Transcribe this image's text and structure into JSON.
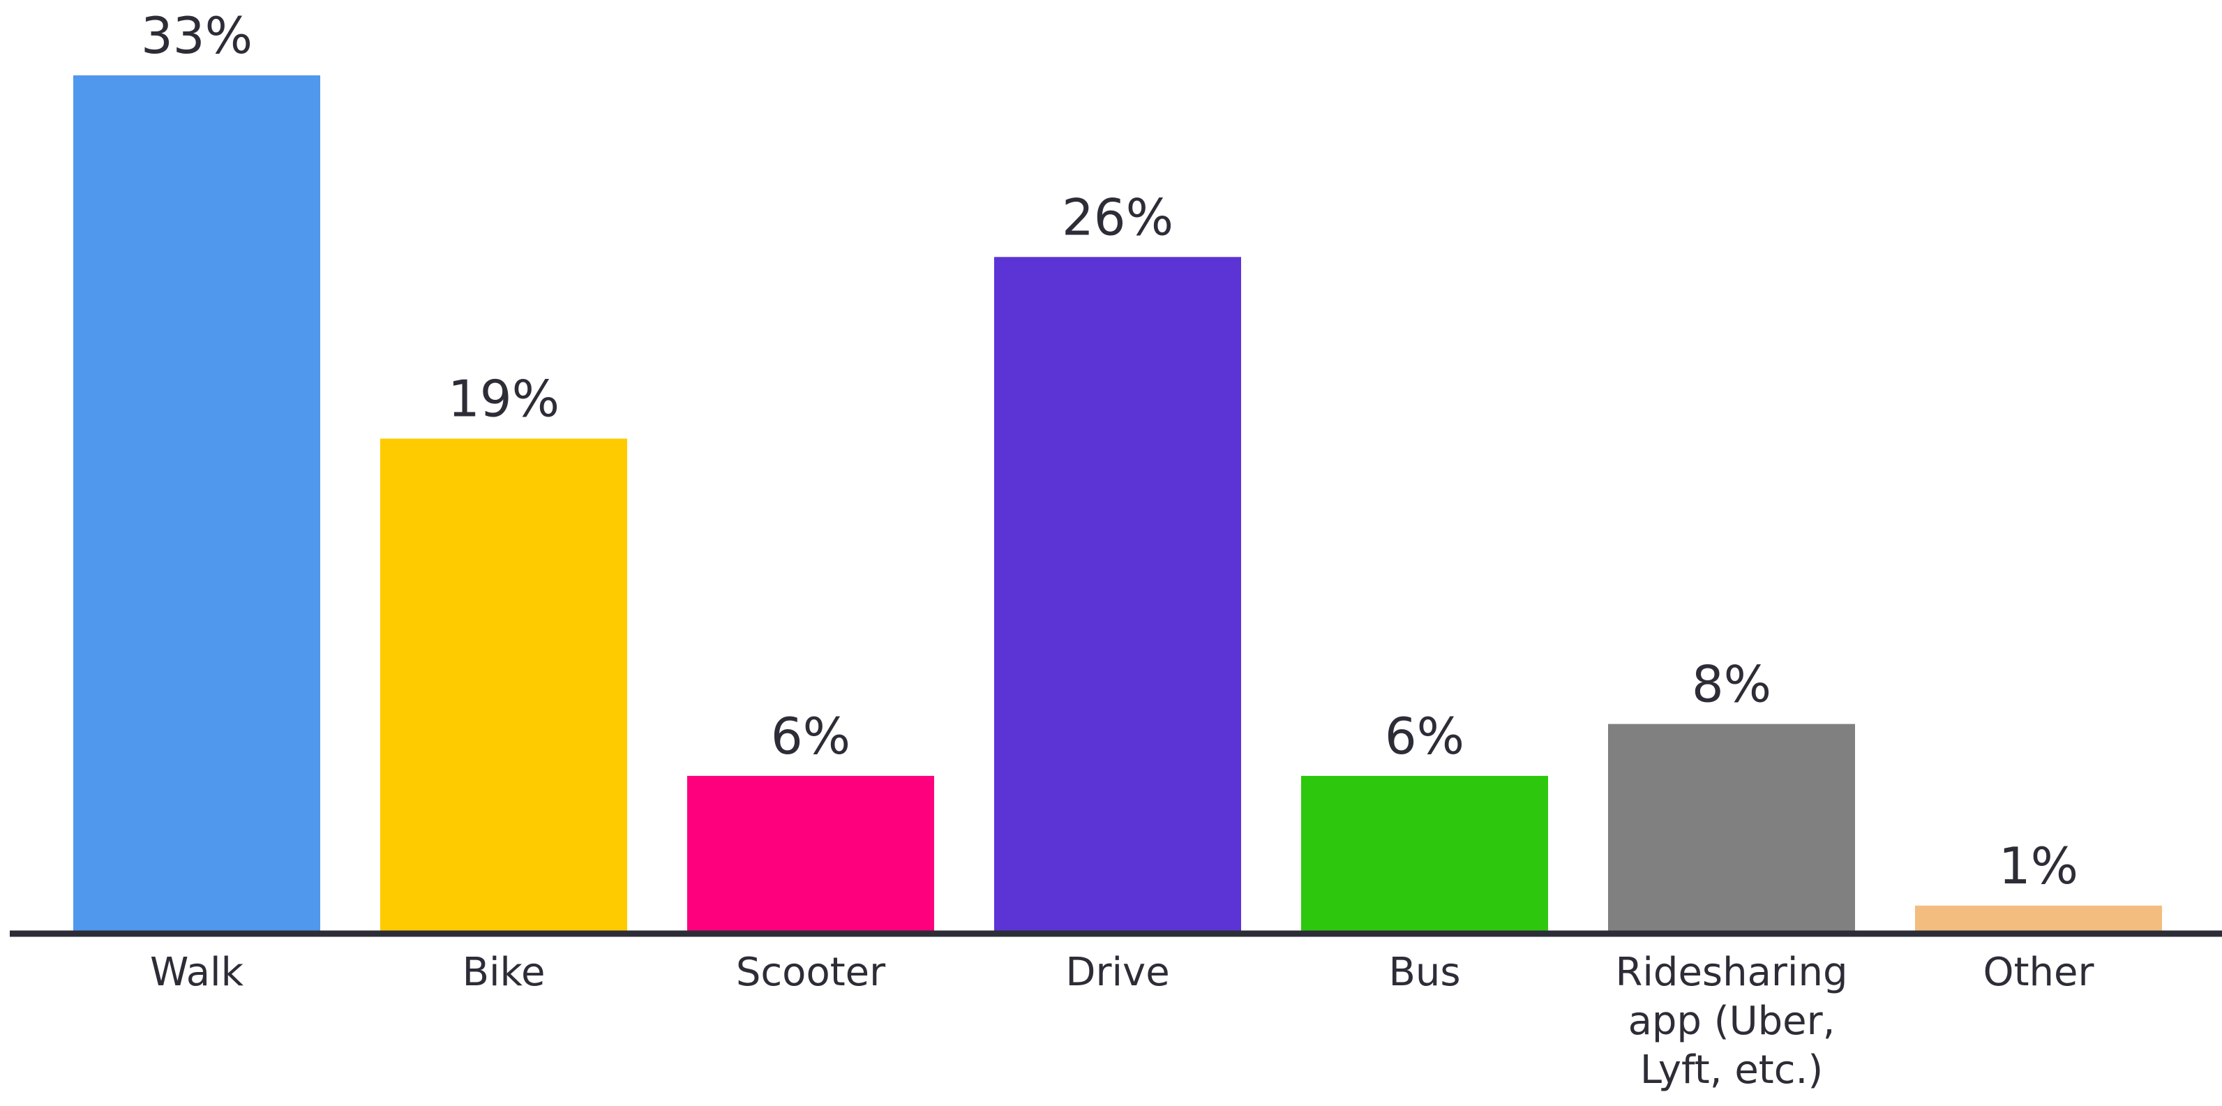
{
  "chart_data": {
    "type": "bar",
    "categories": [
      [
        "Walk"
      ],
      [
        "Bike"
      ],
      [
        "Scooter"
      ],
      [
        "Drive"
      ],
      [
        "Bus"
      ],
      [
        "Ridesharing",
        "app (Uber,",
        "Lyft, etc.)"
      ],
      [
        "Other"
      ]
    ],
    "values": [
      33,
      19,
      6,
      26,
      6,
      8,
      1
    ],
    "value_labels": [
      "33%",
      "19%",
      "6%",
      "26%",
      "6%",
      "8%",
      "1%"
    ],
    "colors": [
      "#4f98ee",
      "#fecb00",
      "#fe007e",
      "#5c34d6",
      "#2dc80d",
      "#808080",
      "#f2bd7f"
    ],
    "axis_color": "#2d2d37",
    "ylim": [
      0,
      33
    ],
    "grid": false,
    "legend": "none"
  }
}
